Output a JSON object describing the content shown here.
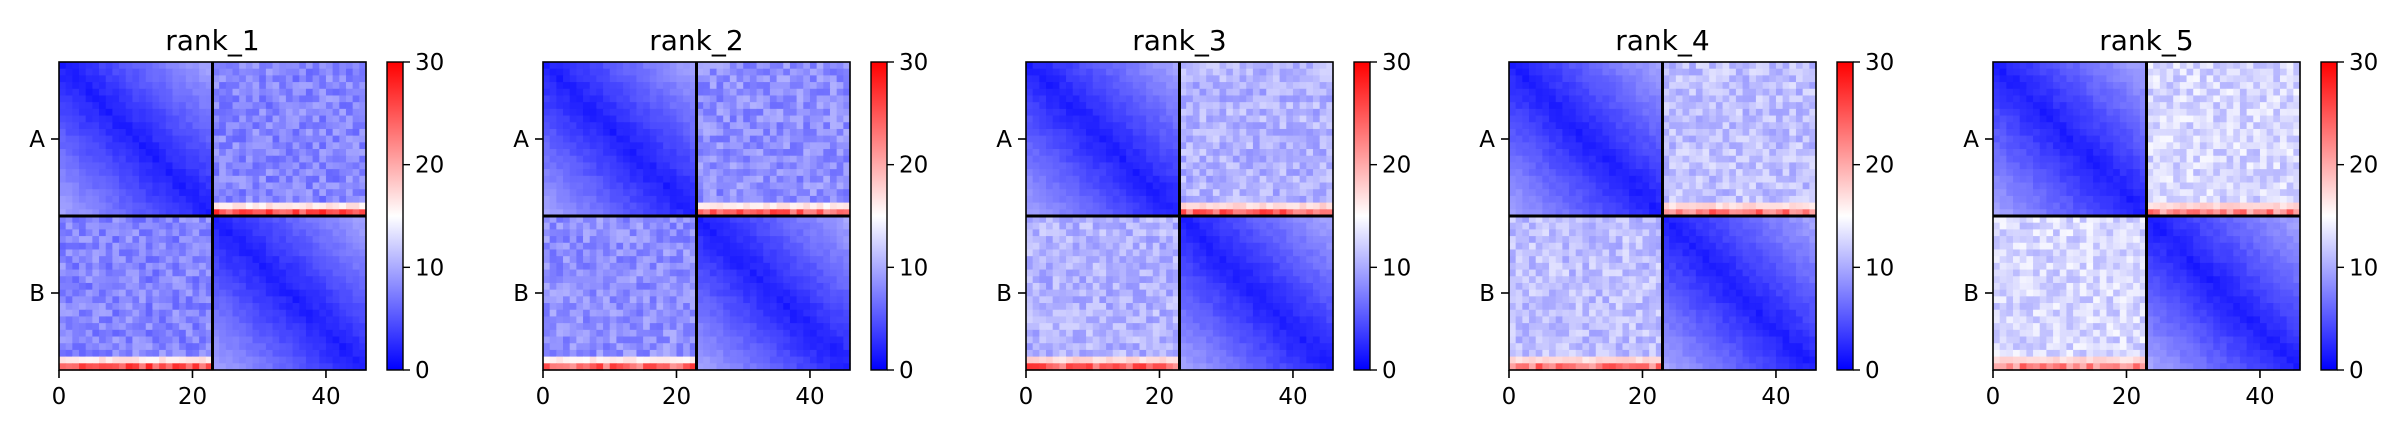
{
  "chart_data": {
    "type": "heatmap",
    "colormap": "bwr",
    "color_low": "#0000ff",
    "color_mid": "#ffffff",
    "color_high": "#ff0000",
    "color_range": [
      0,
      30
    ],
    "colorbar_ticks": [
      "0",
      "10",
      "20",
      "30"
    ],
    "x_ticks": [
      0,
      20,
      40
    ],
    "x_tick_labels": [
      "0",
      "20",
      "40"
    ],
    "xlim": [
      0,
      46
    ],
    "ylim": [
      0,
      46
    ],
    "chain_boundary": 23,
    "y_tick_labels": [
      "A",
      "B"
    ],
    "grid_size": 46,
    "panels": [
      {
        "title": "rank_1",
        "offdiag_mean": 7.8,
        "edge_row_value": 25
      },
      {
        "title": "rank_2",
        "offdiag_mean": 8.4,
        "edge_row_value": 24
      },
      {
        "title": "rank_3",
        "offdiag_mean": 10.5,
        "edge_row_value": 24
      },
      {
        "title": "rank_4",
        "offdiag_mean": 11.3,
        "edge_row_value": 23
      },
      {
        "title": "rank_5",
        "offdiag_mean": 12.6,
        "edge_row_value": 22
      }
    ]
  }
}
